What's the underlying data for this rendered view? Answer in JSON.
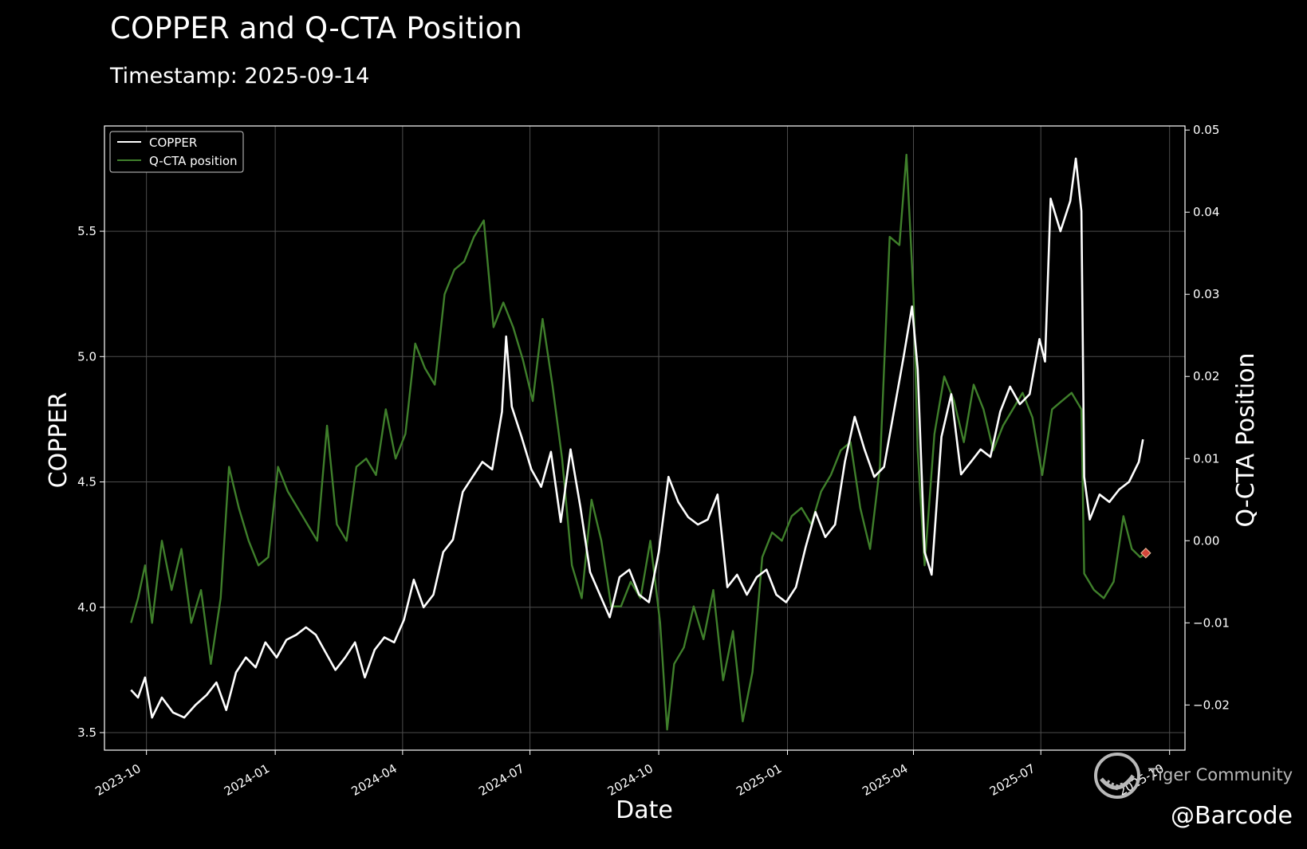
{
  "title": "COPPER and Q-CTA Position",
  "subtitle": "Timestamp: 2025-09-14",
  "watermark": {
    "text": "Tiger Community",
    "icon": "tiger-community-logo"
  },
  "handle": "@Barcode",
  "colors": {
    "copper": "#ffffff",
    "qcta": "#3f7f2b",
    "marker": "#d2453a",
    "grid": "#4d4d4d",
    "axis": "#ffffff"
  },
  "chart_data": {
    "type": "line",
    "title": "COPPER and Q-CTA Position",
    "subtitle": "Timestamp: 2025-09-14",
    "xlabel": "Date",
    "ylabel_left": "COPPER",
    "ylabel_right": "Q-CTA Position",
    "xlim": [
      "2023-09-01",
      "2025-10-12"
    ],
    "ylim_left": [
      3.43,
      5.92
    ],
    "ylim_right": [
      -0.0255,
      0.0505
    ],
    "grid": true,
    "legend": {
      "placement": "upper-left",
      "entries": [
        "COPPER",
        "Q-CTA position"
      ]
    },
    "x_ticks": [
      "2023-10-01",
      "2024-01-01",
      "2024-04-01",
      "2024-07-01",
      "2024-10-01",
      "2025-01-01",
      "2025-04-01",
      "2025-07-01",
      "2025-10-01"
    ],
    "x_tick_labels": [
      "2023-10",
      "2024-01",
      "2024-04",
      "2024-07",
      "2024-10",
      "2025-01",
      "2025-04",
      "2025-07",
      "2025-10"
    ],
    "y_ticks_left": [
      3.5,
      4.0,
      4.5,
      5.0,
      5.5
    ],
    "y_tick_labels_left": [
      "3.5",
      "4.0",
      "4.5",
      "5.0",
      "5.5"
    ],
    "y_ticks_right": [
      -0.02,
      -0.01,
      0.0,
      0.01,
      0.02,
      0.03,
      0.04,
      0.05
    ],
    "y_tick_labels_right": [
      "−0.02",
      "−0.01",
      "0.00",
      "0.01",
      "0.02",
      "0.03",
      "0.04",
      "0.05"
    ],
    "series": [
      {
        "name": "COPPER",
        "axis": "left",
        "points": [
          [
            "2023-09-20",
            3.67
          ],
          [
            "2023-09-25",
            3.64
          ],
          [
            "2023-09-30",
            3.72
          ],
          [
            "2023-10-05",
            3.56
          ],
          [
            "2023-10-12",
            3.64
          ],
          [
            "2023-10-20",
            3.58
          ],
          [
            "2023-10-28",
            3.56
          ],
          [
            "2023-11-05",
            3.61
          ],
          [
            "2023-11-13",
            3.65
          ],
          [
            "2023-11-20",
            3.7
          ],
          [
            "2023-11-27",
            3.59
          ],
          [
            "2023-12-04",
            3.74
          ],
          [
            "2023-12-11",
            3.8
          ],
          [
            "2023-12-18",
            3.76
          ],
          [
            "2023-12-25",
            3.86
          ],
          [
            "2024-01-02",
            3.8
          ],
          [
            "2024-01-09",
            3.87
          ],
          [
            "2024-01-16",
            3.89
          ],
          [
            "2024-01-23",
            3.92
          ],
          [
            "2024-01-30",
            3.89
          ],
          [
            "2024-02-06",
            3.82
          ],
          [
            "2024-02-13",
            3.75
          ],
          [
            "2024-02-20",
            3.8
          ],
          [
            "2024-02-27",
            3.86
          ],
          [
            "2024-03-05",
            3.72
          ],
          [
            "2024-03-12",
            3.83
          ],
          [
            "2024-03-19",
            3.88
          ],
          [
            "2024-03-26",
            3.86
          ],
          [
            "2024-04-02",
            3.95
          ],
          [
            "2024-04-09",
            4.11
          ],
          [
            "2024-04-16",
            4.0
          ],
          [
            "2024-04-23",
            4.05
          ],
          [
            "2024-04-30",
            4.22
          ],
          [
            "2024-05-07",
            4.27
          ],
          [
            "2024-05-14",
            4.46
          ],
          [
            "2024-05-21",
            4.52
          ],
          [
            "2024-05-28",
            4.58
          ],
          [
            "2024-06-04",
            4.55
          ],
          [
            "2024-06-11",
            4.78
          ],
          [
            "2024-06-14",
            5.08
          ],
          [
            "2024-06-18",
            4.8
          ],
          [
            "2024-06-25",
            4.68
          ],
          [
            "2024-07-02",
            4.55
          ],
          [
            "2024-07-09",
            4.48
          ],
          [
            "2024-07-16",
            4.62
          ],
          [
            "2024-07-23",
            4.34
          ],
          [
            "2024-07-30",
            4.63
          ],
          [
            "2024-08-06",
            4.4
          ],
          [
            "2024-08-13",
            4.14
          ],
          [
            "2024-08-20",
            4.05
          ],
          [
            "2024-08-27",
            3.96
          ],
          [
            "2024-09-03",
            4.12
          ],
          [
            "2024-09-10",
            4.15
          ],
          [
            "2024-09-17",
            4.05
          ],
          [
            "2024-09-24",
            4.02
          ],
          [
            "2024-10-01",
            4.22
          ],
          [
            "2024-10-08",
            4.52
          ],
          [
            "2024-10-15",
            4.42
          ],
          [
            "2024-10-22",
            4.36
          ],
          [
            "2024-10-29",
            4.33
          ],
          [
            "2024-11-05",
            4.35
          ],
          [
            "2024-11-12",
            4.45
          ],
          [
            "2024-11-19",
            4.08
          ],
          [
            "2024-11-26",
            4.13
          ],
          [
            "2024-12-03",
            4.05
          ],
          [
            "2024-12-10",
            4.12
          ],
          [
            "2024-12-17",
            4.15
          ],
          [
            "2024-12-24",
            4.05
          ],
          [
            "2024-12-31",
            4.02
          ],
          [
            "2025-01-07",
            4.08
          ],
          [
            "2025-01-14",
            4.24
          ],
          [
            "2025-01-21",
            4.38
          ],
          [
            "2025-01-28",
            4.28
          ],
          [
            "2025-02-04",
            4.33
          ],
          [
            "2025-02-11",
            4.58
          ],
          [
            "2025-02-18",
            4.76
          ],
          [
            "2025-02-25",
            4.63
          ],
          [
            "2025-03-04",
            4.52
          ],
          [
            "2025-03-11",
            4.56
          ],
          [
            "2025-03-18",
            4.78
          ],
          [
            "2025-03-25",
            5.0
          ],
          [
            "2025-03-31",
            5.2
          ],
          [
            "2025-04-04",
            4.95
          ],
          [
            "2025-04-09",
            4.22
          ],
          [
            "2025-04-14",
            4.13
          ],
          [
            "2025-04-21",
            4.68
          ],
          [
            "2025-04-28",
            4.85
          ],
          [
            "2025-05-05",
            4.53
          ],
          [
            "2025-05-12",
            4.58
          ],
          [
            "2025-05-19",
            4.63
          ],
          [
            "2025-05-26",
            4.6
          ],
          [
            "2025-06-02",
            4.78
          ],
          [
            "2025-06-09",
            4.88
          ],
          [
            "2025-06-16",
            4.81
          ],
          [
            "2025-06-23",
            4.85
          ],
          [
            "2025-06-30",
            5.07
          ],
          [
            "2025-07-04",
            4.98
          ],
          [
            "2025-07-08",
            5.63
          ],
          [
            "2025-07-15",
            5.5
          ],
          [
            "2025-07-22",
            5.62
          ],
          [
            "2025-07-26",
            5.79
          ],
          [
            "2025-07-30",
            5.58
          ],
          [
            "2025-08-01",
            4.52
          ],
          [
            "2025-08-05",
            4.35
          ],
          [
            "2025-08-12",
            4.45
          ],
          [
            "2025-08-19",
            4.42
          ],
          [
            "2025-08-26",
            4.47
          ],
          [
            "2025-09-02",
            4.5
          ],
          [
            "2025-09-09",
            4.58
          ],
          [
            "2025-09-12",
            4.67
          ]
        ]
      },
      {
        "name": "Q-CTA position",
        "axis": "right",
        "points": [
          [
            "2023-09-20",
            -0.01
          ],
          [
            "2023-09-25",
            -0.007
          ],
          [
            "2023-09-30",
            -0.003
          ],
          [
            "2023-10-05",
            -0.01
          ],
          [
            "2023-10-12",
            0.0
          ],
          [
            "2023-10-19",
            -0.006
          ],
          [
            "2023-10-26",
            -0.001
          ],
          [
            "2023-11-02",
            -0.01
          ],
          [
            "2023-11-09",
            -0.006
          ],
          [
            "2023-11-16",
            -0.015
          ],
          [
            "2023-11-23",
            -0.007
          ],
          [
            "2023-11-29",
            0.009
          ],
          [
            "2023-12-06",
            0.004
          ],
          [
            "2023-12-13",
            0.0
          ],
          [
            "2023-12-20",
            -0.003
          ],
          [
            "2023-12-27",
            -0.002
          ],
          [
            "2024-01-03",
            0.009
          ],
          [
            "2024-01-10",
            0.006
          ],
          [
            "2024-01-17",
            0.004
          ],
          [
            "2024-01-24",
            0.002
          ],
          [
            "2024-01-31",
            0.0
          ],
          [
            "2024-02-07",
            0.014
          ],
          [
            "2024-02-14",
            0.002
          ],
          [
            "2024-02-21",
            0.0
          ],
          [
            "2024-02-28",
            0.009
          ],
          [
            "2024-03-06",
            0.01
          ],
          [
            "2024-03-13",
            0.008
          ],
          [
            "2024-03-20",
            0.016
          ],
          [
            "2024-03-27",
            0.01
          ],
          [
            "2024-04-03",
            0.013
          ],
          [
            "2024-04-10",
            0.024
          ],
          [
            "2024-04-17",
            0.021
          ],
          [
            "2024-04-24",
            0.019
          ],
          [
            "2024-05-01",
            0.03
          ],
          [
            "2024-05-08",
            0.033
          ],
          [
            "2024-05-15",
            0.034
          ],
          [
            "2024-05-22",
            0.037
          ],
          [
            "2024-05-29",
            0.039
          ],
          [
            "2024-06-05",
            0.026
          ],
          [
            "2024-06-12",
            0.029
          ],
          [
            "2024-06-19",
            0.026
          ],
          [
            "2024-06-26",
            0.022
          ],
          [
            "2024-07-03",
            0.017
          ],
          [
            "2024-07-10",
            0.027
          ],
          [
            "2024-07-17",
            0.019
          ],
          [
            "2024-07-24",
            0.01
          ],
          [
            "2024-07-31",
            -0.003
          ],
          [
            "2024-08-07",
            -0.007
          ],
          [
            "2024-08-14",
            0.005
          ],
          [
            "2024-08-21",
            0.0
          ],
          [
            "2024-08-28",
            -0.008
          ],
          [
            "2024-09-04",
            -0.008
          ],
          [
            "2024-09-11",
            -0.005
          ],
          [
            "2024-09-18",
            -0.007
          ],
          [
            "2024-09-25",
            0.0
          ],
          [
            "2024-10-02",
            -0.01
          ],
          [
            "2024-10-07",
            -0.023
          ],
          [
            "2024-10-12",
            -0.015
          ],
          [
            "2024-10-19",
            -0.013
          ],
          [
            "2024-10-26",
            -0.008
          ],
          [
            "2024-11-02",
            -0.012
          ],
          [
            "2024-11-09",
            -0.006
          ],
          [
            "2024-11-16",
            -0.017
          ],
          [
            "2024-11-23",
            -0.011
          ],
          [
            "2024-11-30",
            -0.022
          ],
          [
            "2024-12-07",
            -0.016
          ],
          [
            "2024-12-14",
            -0.002
          ],
          [
            "2024-12-21",
            0.001
          ],
          [
            "2024-12-28",
            0.0
          ],
          [
            "2025-01-04",
            0.003
          ],
          [
            "2025-01-11",
            0.004
          ],
          [
            "2025-01-18",
            0.002
          ],
          [
            "2025-01-25",
            0.006
          ],
          [
            "2025-02-01",
            0.008
          ],
          [
            "2025-02-08",
            0.011
          ],
          [
            "2025-02-15",
            0.012
          ],
          [
            "2025-02-22",
            0.004
          ],
          [
            "2025-03-01",
            -0.001
          ],
          [
            "2025-03-08",
            0.009
          ],
          [
            "2025-03-15",
            0.037
          ],
          [
            "2025-03-22",
            0.036
          ],
          [
            "2025-03-27",
            0.047
          ],
          [
            "2025-04-01",
            0.03
          ],
          [
            "2025-04-04",
            0.011
          ],
          [
            "2025-04-09",
            -0.003
          ],
          [
            "2025-04-16",
            0.013
          ],
          [
            "2025-04-23",
            0.02
          ],
          [
            "2025-04-30",
            0.017
          ],
          [
            "2025-05-07",
            0.012
          ],
          [
            "2025-05-14",
            0.019
          ],
          [
            "2025-05-21",
            0.016
          ],
          [
            "2025-05-28",
            0.011
          ],
          [
            "2025-06-04",
            0.014
          ],
          [
            "2025-06-11",
            0.016
          ],
          [
            "2025-06-18",
            0.018
          ],
          [
            "2025-06-25",
            0.015
          ],
          [
            "2025-07-02",
            0.008
          ],
          [
            "2025-07-09",
            0.016
          ],
          [
            "2025-07-16",
            0.017
          ],
          [
            "2025-07-23",
            0.018
          ],
          [
            "2025-07-30",
            0.016
          ],
          [
            "2025-08-01",
            -0.004
          ],
          [
            "2025-08-08",
            -0.006
          ],
          [
            "2025-08-15",
            -0.007
          ],
          [
            "2025-08-22",
            -0.005
          ],
          [
            "2025-08-29",
            0.003
          ],
          [
            "2025-09-04",
            -0.001
          ],
          [
            "2025-09-10",
            -0.002
          ],
          [
            "2025-09-14",
            -0.0015
          ]
        ]
      }
    ],
    "markers": [
      {
        "x": "2025-09-14",
        "y": -0.0015,
        "axis": "right",
        "shape": "diamond"
      }
    ]
  }
}
